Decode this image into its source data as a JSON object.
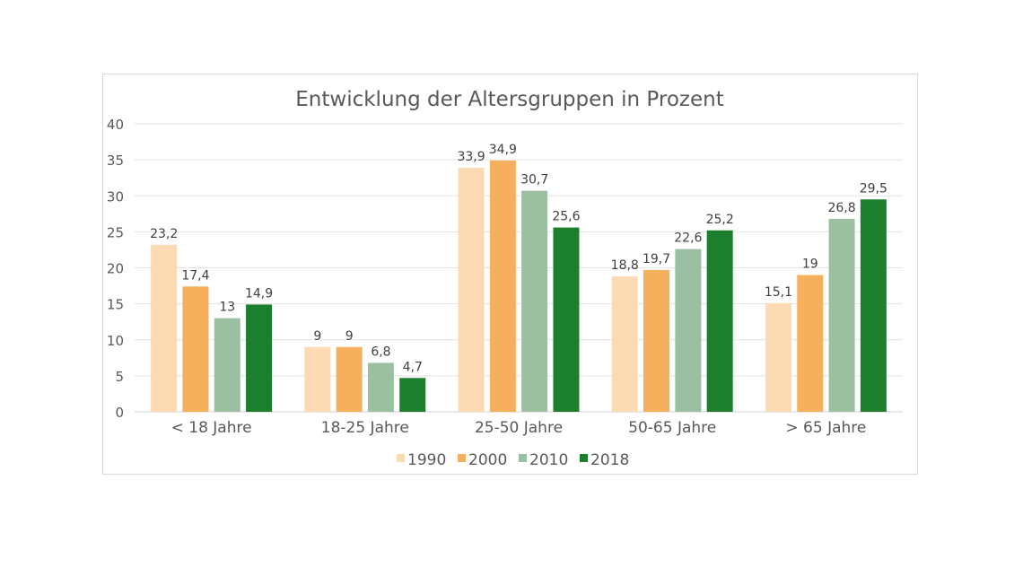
{
  "chart_data": {
    "type": "bar",
    "title": "Entwicklung der Altersgruppen  in Prozent",
    "xlabel": "",
    "ylabel": "",
    "ylim": [
      0,
      40
    ],
    "yticks": [
      0,
      5,
      10,
      15,
      20,
      25,
      30,
      35,
      40
    ],
    "grid": true,
    "legend_position": "bottom",
    "categories": [
      "< 18 Jahre",
      "18-25 Jahre",
      "25-50 Jahre",
      "50-65 Jahre",
      "> 65 Jahre"
    ],
    "series": [
      {
        "name": "1990",
        "color": "#FCDAB3",
        "values": [
          23.2,
          9,
          33.9,
          18.8,
          15.1
        ],
        "labels": [
          "23,2",
          "9",
          "33,9",
          "18,8",
          "15,1"
        ]
      },
      {
        "name": "2000",
        "color": "#F5AF5D",
        "values": [
          17.4,
          9,
          34.9,
          19.7,
          19
        ],
        "labels": [
          "17,4",
          "9",
          "34,9",
          "19,7",
          "19"
        ]
      },
      {
        "name": "2010",
        "color": "#9BBFA1",
        "values": [
          13,
          6.8,
          30.7,
          22.6,
          26.8
        ],
        "labels": [
          "13",
          "6,8",
          "30,7",
          "22,6",
          "26,8"
        ]
      },
      {
        "name": "2018",
        "color": "#1B7F2E",
        "values": [
          14.9,
          4.7,
          25.6,
          25.2,
          29.5
        ],
        "labels": [
          "14,9",
          "4,7",
          "25,6",
          "25,2",
          "29,5"
        ]
      }
    ]
  }
}
